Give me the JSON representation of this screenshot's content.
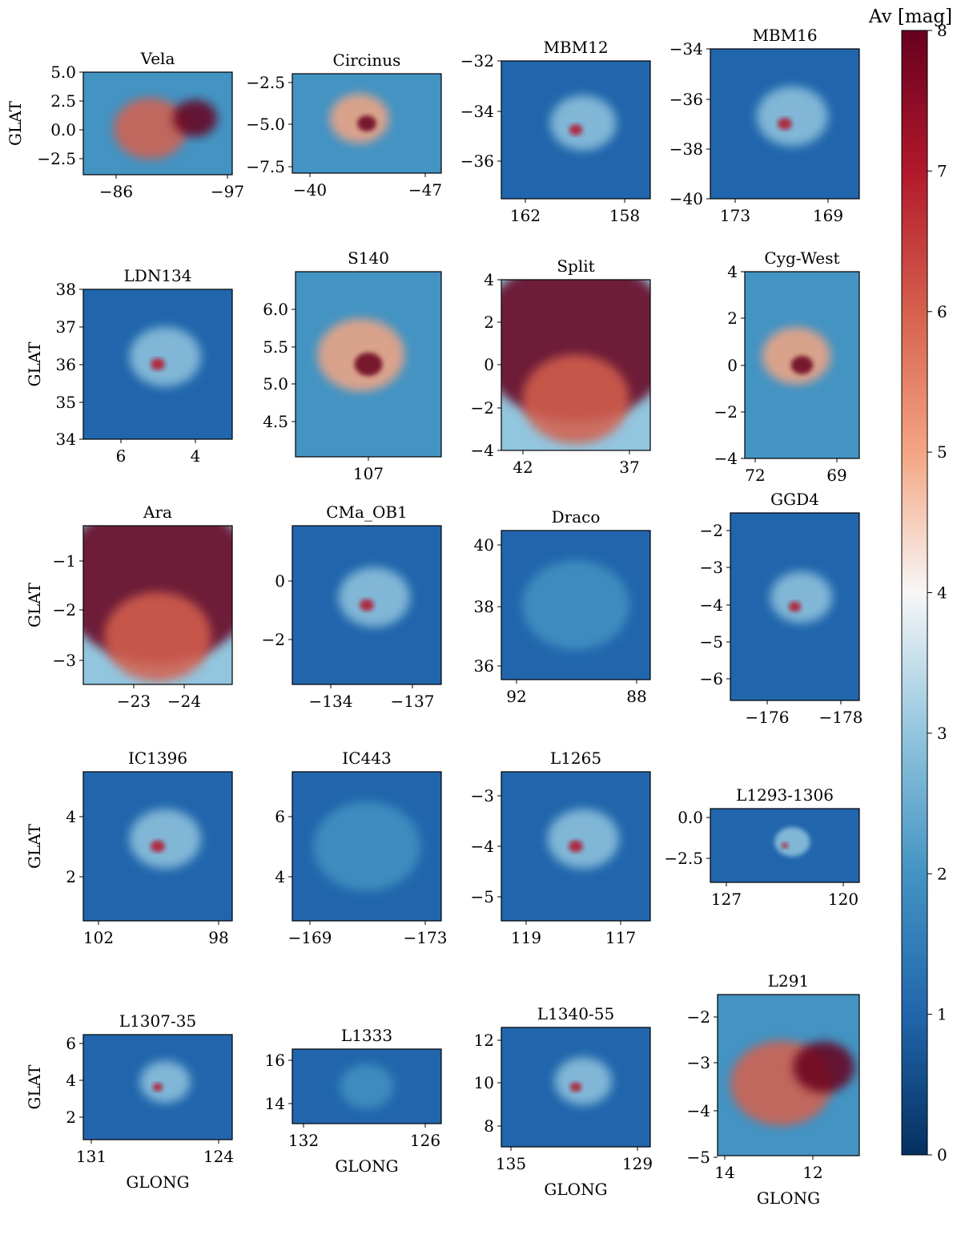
{
  "chart_data": {
    "type": "heatmap",
    "figure_title": "",
    "colorbar": {
      "label": "Av [mag]",
      "min": 0,
      "max": 8,
      "ticks": [
        0,
        1,
        2,
        3,
        4,
        5,
        6,
        7,
        8
      ],
      "colormap": "RdBu_r",
      "stops": [
        "#053061",
        "#2166ac",
        "#4393c3",
        "#92c5de",
        "#f7f7f7",
        "#f4a582",
        "#d6604d",
        "#b2182b",
        "#67001f"
      ]
    },
    "panels": [
      {
        "title": "Vela",
        "xlabel": "",
        "ylabel": "GLAT",
        "xticks": [
          "−86",
          "−97"
        ],
        "yticks": [
          "5.0",
          "2.5",
          "0.0",
          "−2.5"
        ],
        "intensity": "high"
      },
      {
        "title": "Circinus",
        "xlabel": "",
        "ylabel": "",
        "xticks": [
          "−40",
          "−47"
        ],
        "yticks": [
          "−2.5",
          "−5.0",
          "−7.5"
        ],
        "intensity": "medium"
      },
      {
        "title": "MBM12",
        "xlabel": "",
        "ylabel": "",
        "xticks": [
          "162",
          "158"
        ],
        "yticks": [
          "−32",
          "−34",
          "−36"
        ],
        "intensity": "low"
      },
      {
        "title": "MBM16",
        "xlabel": "",
        "ylabel": "",
        "xticks": [
          "173",
          "169"
        ],
        "yticks": [
          "−34",
          "−36",
          "−38",
          "−40"
        ],
        "intensity": "low"
      },
      {
        "title": "LDN134",
        "xlabel": "",
        "ylabel": "GLAT",
        "xticks": [
          "6",
          "4"
        ],
        "yticks": [
          "38",
          "37",
          "36",
          "35",
          "34"
        ],
        "intensity": "low"
      },
      {
        "title": "S140",
        "xlabel": "",
        "ylabel": "",
        "xticks": [
          "107"
        ],
        "yticks": [
          "6.0",
          "5.5",
          "5.0",
          "4.5"
        ],
        "intensity": "medium"
      },
      {
        "title": "Split",
        "xlabel": "",
        "ylabel": "",
        "xticks": [
          "42",
          "37"
        ],
        "yticks": [
          "4",
          "2",
          "0",
          "−2",
          "−4"
        ],
        "intensity": "very-high"
      },
      {
        "title": "Cyg-West",
        "xlabel": "",
        "ylabel": "",
        "xticks": [
          "72",
          "69"
        ],
        "yticks": [
          "4",
          "2",
          "0",
          "−2",
          "−4"
        ],
        "intensity": "medium"
      },
      {
        "title": "Ara",
        "xlabel": "",
        "ylabel": "GLAT",
        "xticks": [
          "−23",
          "−24"
        ],
        "yticks": [
          "−1",
          "−2",
          "−3"
        ],
        "intensity": "very-high"
      },
      {
        "title": "CMa_OB1",
        "xlabel": "",
        "ylabel": "",
        "xticks": [
          "−134",
          "−137"
        ],
        "yticks": [
          "0",
          "−2"
        ],
        "intensity": "low"
      },
      {
        "title": "Draco",
        "xlabel": "",
        "ylabel": "",
        "xticks": [
          "92",
          "88"
        ],
        "yticks": [
          "40",
          "38",
          "36"
        ],
        "intensity": "very-low"
      },
      {
        "title": "GGD4",
        "xlabel": "",
        "ylabel": "",
        "xticks": [
          "−176",
          "−178"
        ],
        "yticks": [
          "−2",
          "−3",
          "−4",
          "−5",
          "−6"
        ],
        "intensity": "low"
      },
      {
        "title": "IC1396",
        "xlabel": "",
        "ylabel": "GLAT",
        "xticks": [
          "102",
          "98"
        ],
        "yticks": [
          "4",
          "2"
        ],
        "intensity": "low"
      },
      {
        "title": "IC443",
        "xlabel": "",
        "ylabel": "",
        "xticks": [
          "−169",
          "−173"
        ],
        "yticks": [
          "6",
          "4"
        ],
        "intensity": "very-low"
      },
      {
        "title": "L1265",
        "xlabel": "",
        "ylabel": "",
        "xticks": [
          "119",
          "117"
        ],
        "yticks": [
          "−3",
          "−4",
          "−5"
        ],
        "intensity": "low"
      },
      {
        "title": "L1293-1306",
        "xlabel": "",
        "ylabel": "",
        "xticks": [
          "127",
          "120"
        ],
        "yticks": [
          "0.0",
          "−2.5"
        ],
        "intensity": "low"
      },
      {
        "title": "L1307-35",
        "xlabel": "GLONG",
        "ylabel": "GLAT",
        "xticks": [
          "131",
          "124"
        ],
        "yticks": [
          "6",
          "4",
          "2"
        ],
        "intensity": "low"
      },
      {
        "title": "L1333",
        "xlabel": "GLONG",
        "ylabel": "",
        "xticks": [
          "132",
          "126"
        ],
        "yticks": [
          "16",
          "14"
        ],
        "intensity": "very-low"
      },
      {
        "title": "L1340-55",
        "xlabel": "GLONG",
        "ylabel": "",
        "xticks": [
          "135",
          "129"
        ],
        "yticks": [
          "12",
          "10",
          "8"
        ],
        "intensity": "low"
      },
      {
        "title": "L291",
        "xlabel": "GLONG",
        "ylabel": "",
        "xticks": [
          "14",
          "12"
        ],
        "yticks": [
          "−2",
          "−3",
          "−4",
          "−5"
        ],
        "intensity": "high"
      }
    ]
  }
}
